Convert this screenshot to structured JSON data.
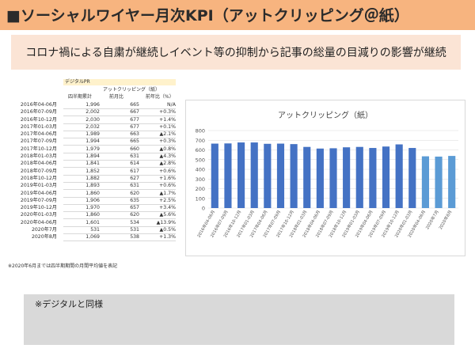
{
  "header": {
    "title": "■ソーシャルワイヤー月次KPI（アットクリッピング＠紙）"
  },
  "summary": {
    "text": "コロナ禍による自粛が継続しイベント等の抑制から記事の総量の目減りの影響が継続"
  },
  "table": {
    "caption": "デジタルPR",
    "group_label": "アットクリッピング（紙）",
    "columns": [
      "四半期累計",
      "前月比",
      "前年比（%）"
    ],
    "rows": [
      [
        "2016年04-06月",
        "1,996",
        "665",
        "N/A"
      ],
      [
        "2016年07-09月",
        "2,002",
        "667",
        "+0.3%"
      ],
      [
        "2016年10-12月",
        "2,030",
        "677",
        "+1.4%"
      ],
      [
        "2017年01-03月",
        "2,032",
        "677",
        "+0.1%"
      ],
      [
        "2017年04-06月",
        "1,989",
        "663",
        "▲2.1%"
      ],
      [
        "2017年07-09月",
        "1,994",
        "665",
        "+0.3%"
      ],
      [
        "2017年10-12月",
        "1,979",
        "660",
        "▲0.8%"
      ],
      [
        "2018年01-03月",
        "1,894",
        "631",
        "▲4.3%"
      ],
      [
        "2018年04-06月",
        "1,841",
        "614",
        "▲2.8%"
      ],
      [
        "2018年07-09月",
        "1,852",
        "617",
        "+0.6%"
      ],
      [
        "2018年10-12月",
        "1,882",
        "627",
        "+1.6%"
      ],
      [
        "2019年01-03月",
        "1,893",
        "631",
        "+0.6%"
      ],
      [
        "2019年04-06月",
        "1,860",
        "620",
        "▲1.7%"
      ],
      [
        "2019年07-09月",
        "1,906",
        "635",
        "+2.5%"
      ],
      [
        "2019年10-12月",
        "1,970",
        "657",
        "+3.4%"
      ],
      [
        "2020年01-03月",
        "1,860",
        "620",
        "▲5.6%"
      ],
      [
        "2020年04-06月",
        "1,601",
        "534",
        "▲13.9%"
      ],
      [
        "2020年7月",
        "531",
        "531",
        "▲0.5%"
      ],
      [
        "2020年8月",
        "1,069",
        "538",
        "+1.3%"
      ]
    ],
    "note": "※2020年6月までは四半期期間の月間平均値を表記"
  },
  "chart_data": {
    "type": "bar",
    "title": "アットクリッピング（紙）",
    "categories": [
      "2016年04-06月",
      "2016年07-09月",
      "2016年10-12月",
      "2017年01-03月",
      "2017年04-06月",
      "2017年07-09月",
      "2017年10-12月",
      "2018年01-03月",
      "2018年04-06月",
      "2018年07-09月",
      "2018年10-12月",
      "2019年01-03月",
      "2019年04-06月",
      "2019年07-09月",
      "2019年10-12月",
      "2020年01-03月",
      "2020年04-06月",
      "2020年7月",
      "2020年8月"
    ],
    "values": [
      665,
      667,
      677,
      677,
      663,
      665,
      660,
      631,
      614,
      617,
      627,
      631,
      620,
      635,
      657,
      620,
      534,
      531,
      538
    ],
    "ylim": [
      0,
      800
    ],
    "yticks": [
      0,
      100,
      200,
      300,
      400,
      500,
      600,
      700,
      800
    ],
    "grid": true,
    "colors": {
      "quarter": "#4472c4",
      "month": "#5b9bd5"
    }
  },
  "memo": {
    "text": "※デジタルと同様"
  }
}
